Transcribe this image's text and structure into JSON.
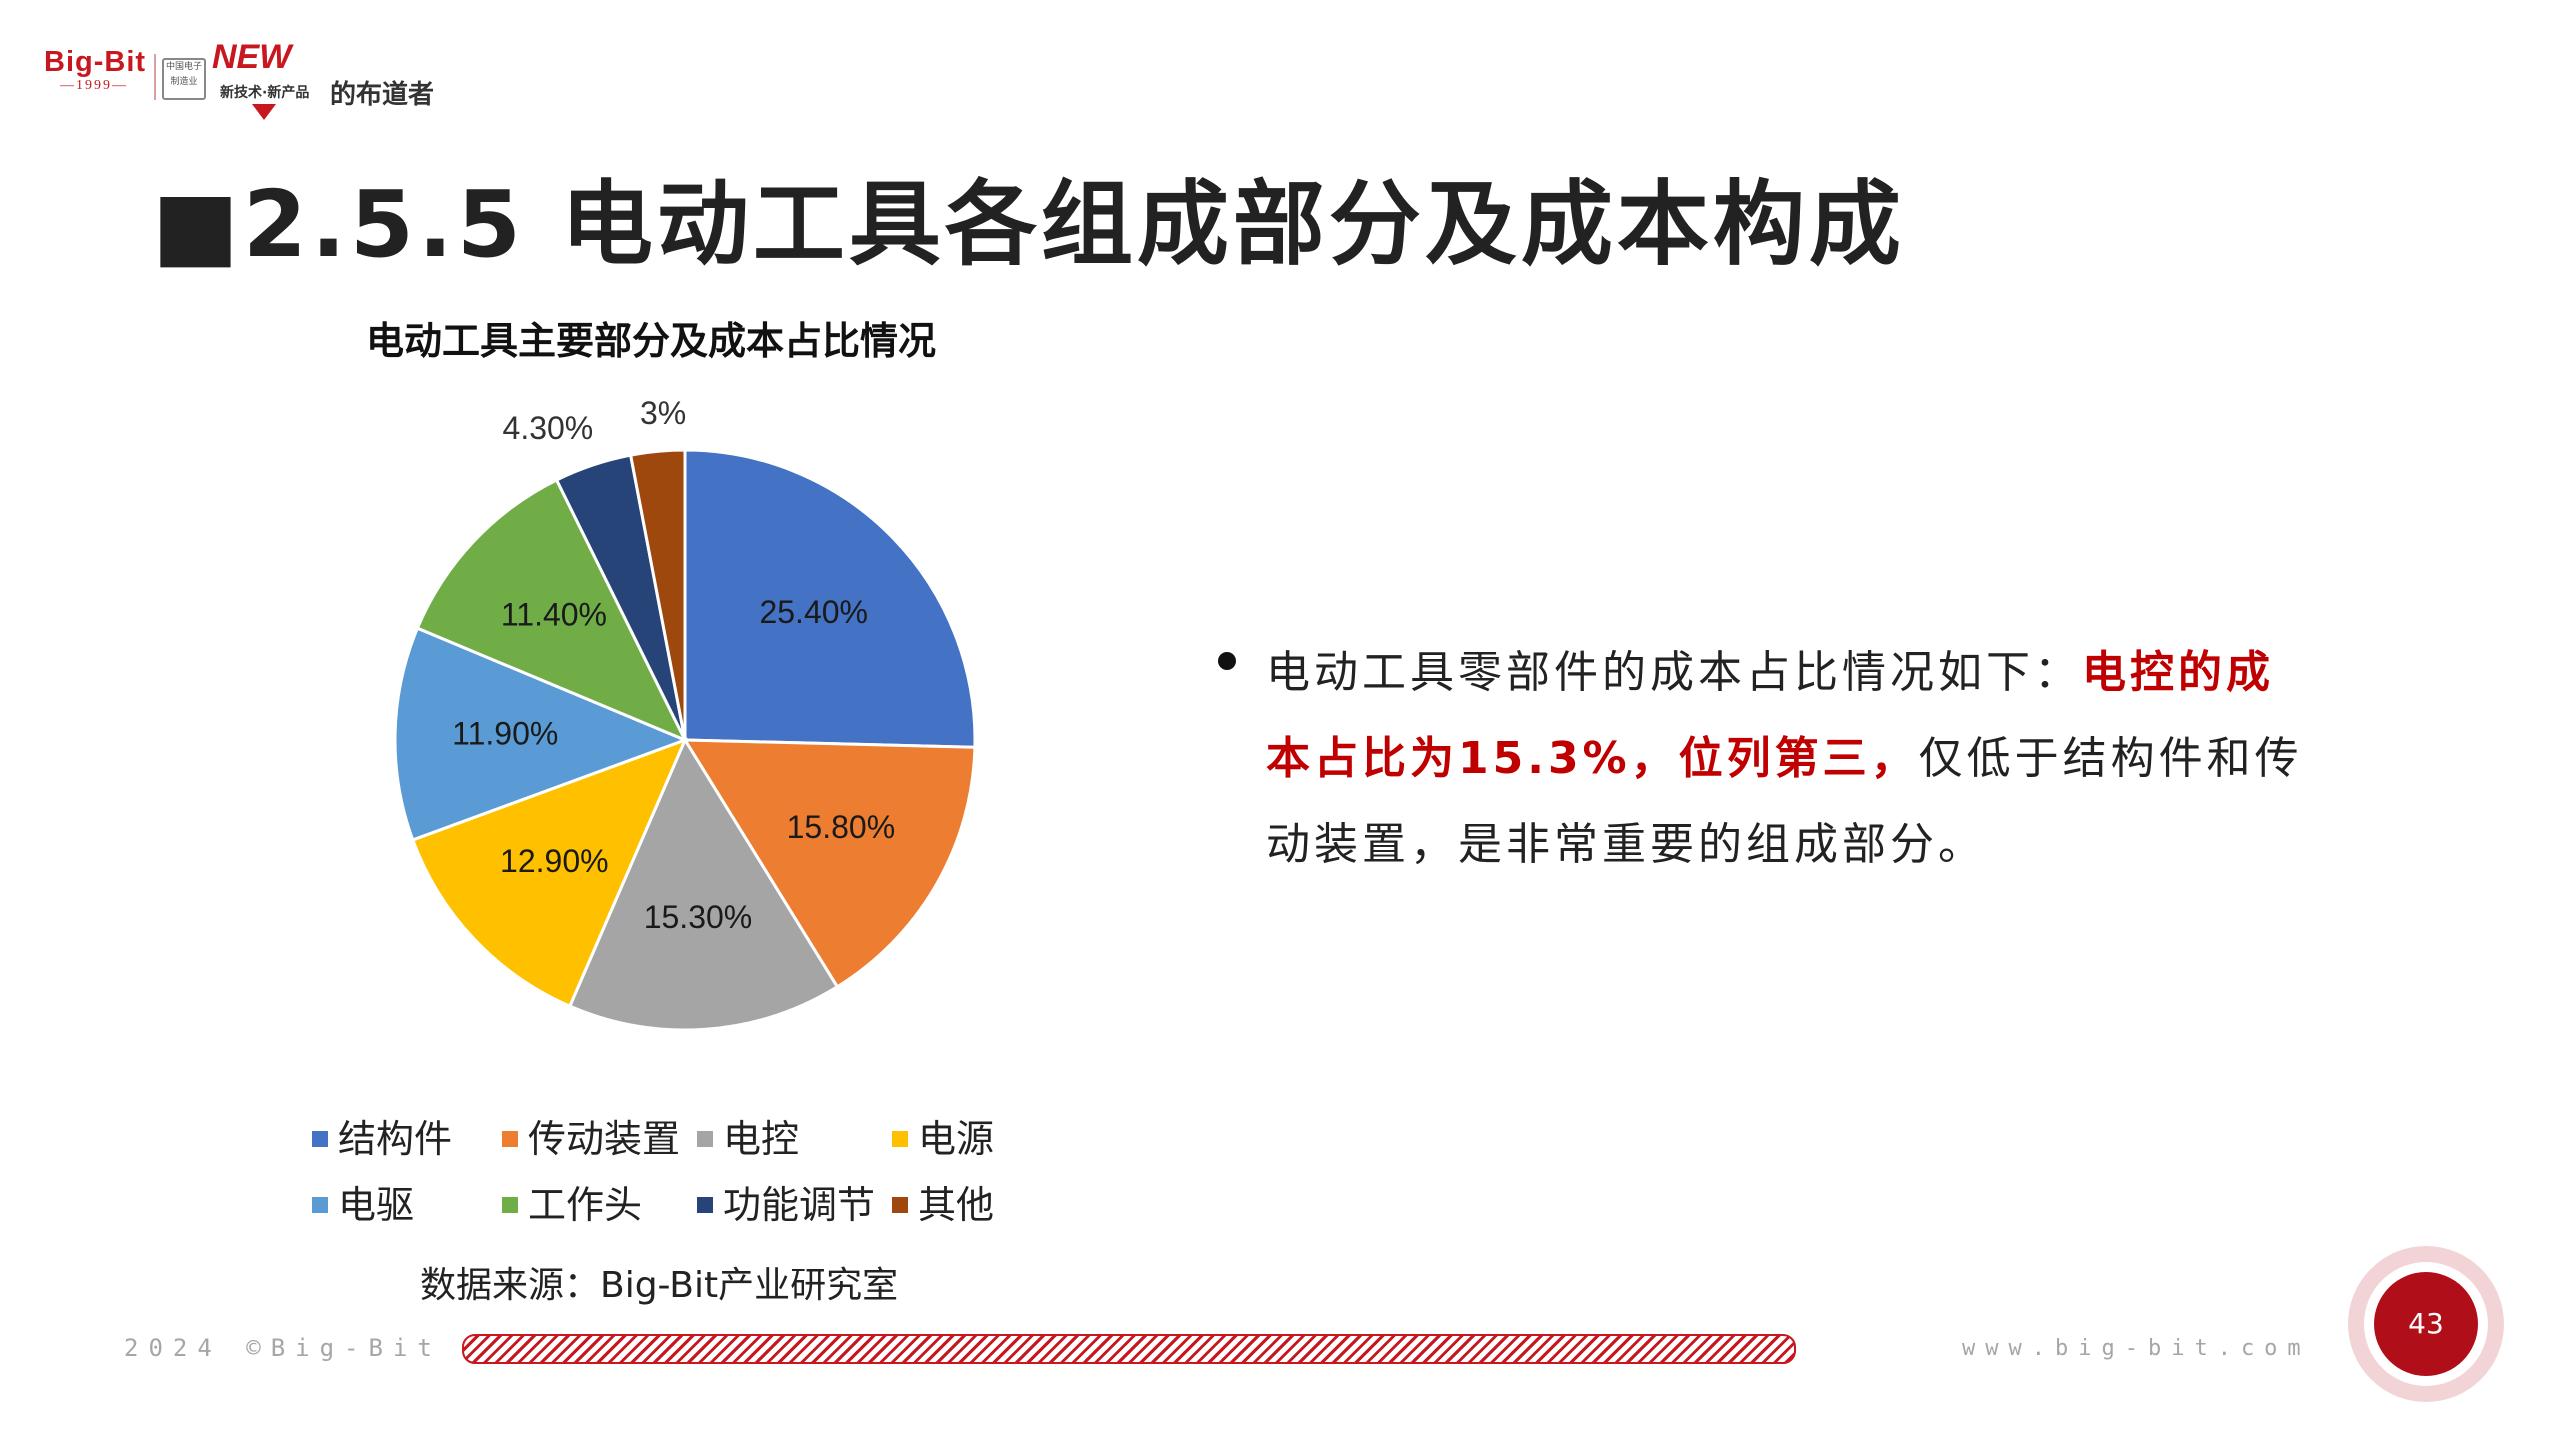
{
  "logo": {
    "brand": "Big-Bit",
    "year": "—1999—",
    "org_badge": "中国电子制造业",
    "new_label": "NEW",
    "tagline": "新技术·新产品",
    "name": "的布道者"
  },
  "title": "■2.5.5 电动工具各组成部分及成本构成",
  "bullet": {
    "intro": "电动工具零部件的成本占比情况如下：",
    "highlight": "电控的成本占比为15.3%，位列第三，",
    "rest": "仅低于结构件和传动装置，是非常重要的组成部分。"
  },
  "source": "数据来源：Big-Bit产业研究室",
  "footer": {
    "copyright": "2024 ©Big-Bit",
    "website": "www.big-bit.com",
    "page_number": "43"
  },
  "chart_data": {
    "type": "pie",
    "title": "电动工具主要部分及成本占比情况",
    "legend_position": "bottom",
    "slices": [
      {
        "name": "结构件",
        "value": 25.4,
        "label": "25.40%",
        "color": "#4472c4"
      },
      {
        "name": "传动装置",
        "value": 15.8,
        "label": "15.80%",
        "color": "#ed7d31"
      },
      {
        "name": "电控",
        "value": 15.3,
        "label": "15.30%",
        "color": "#a5a5a5"
      },
      {
        "name": "电源",
        "value": 12.9,
        "label": "12.90%",
        "color": "#ffc000"
      },
      {
        "name": "电驱",
        "value": 11.9,
        "label": "11.90%",
        "color": "#5b9bd5"
      },
      {
        "name": "工作头",
        "value": 11.4,
        "label": "11.40%",
        "color": "#70ad47"
      },
      {
        "name": "功能调节",
        "value": 4.3,
        "label": "4.30%",
        "color": "#264478"
      },
      {
        "name": "其他",
        "value": 3.0,
        "label": "3%",
        "color": "#9e480e"
      }
    ]
  }
}
